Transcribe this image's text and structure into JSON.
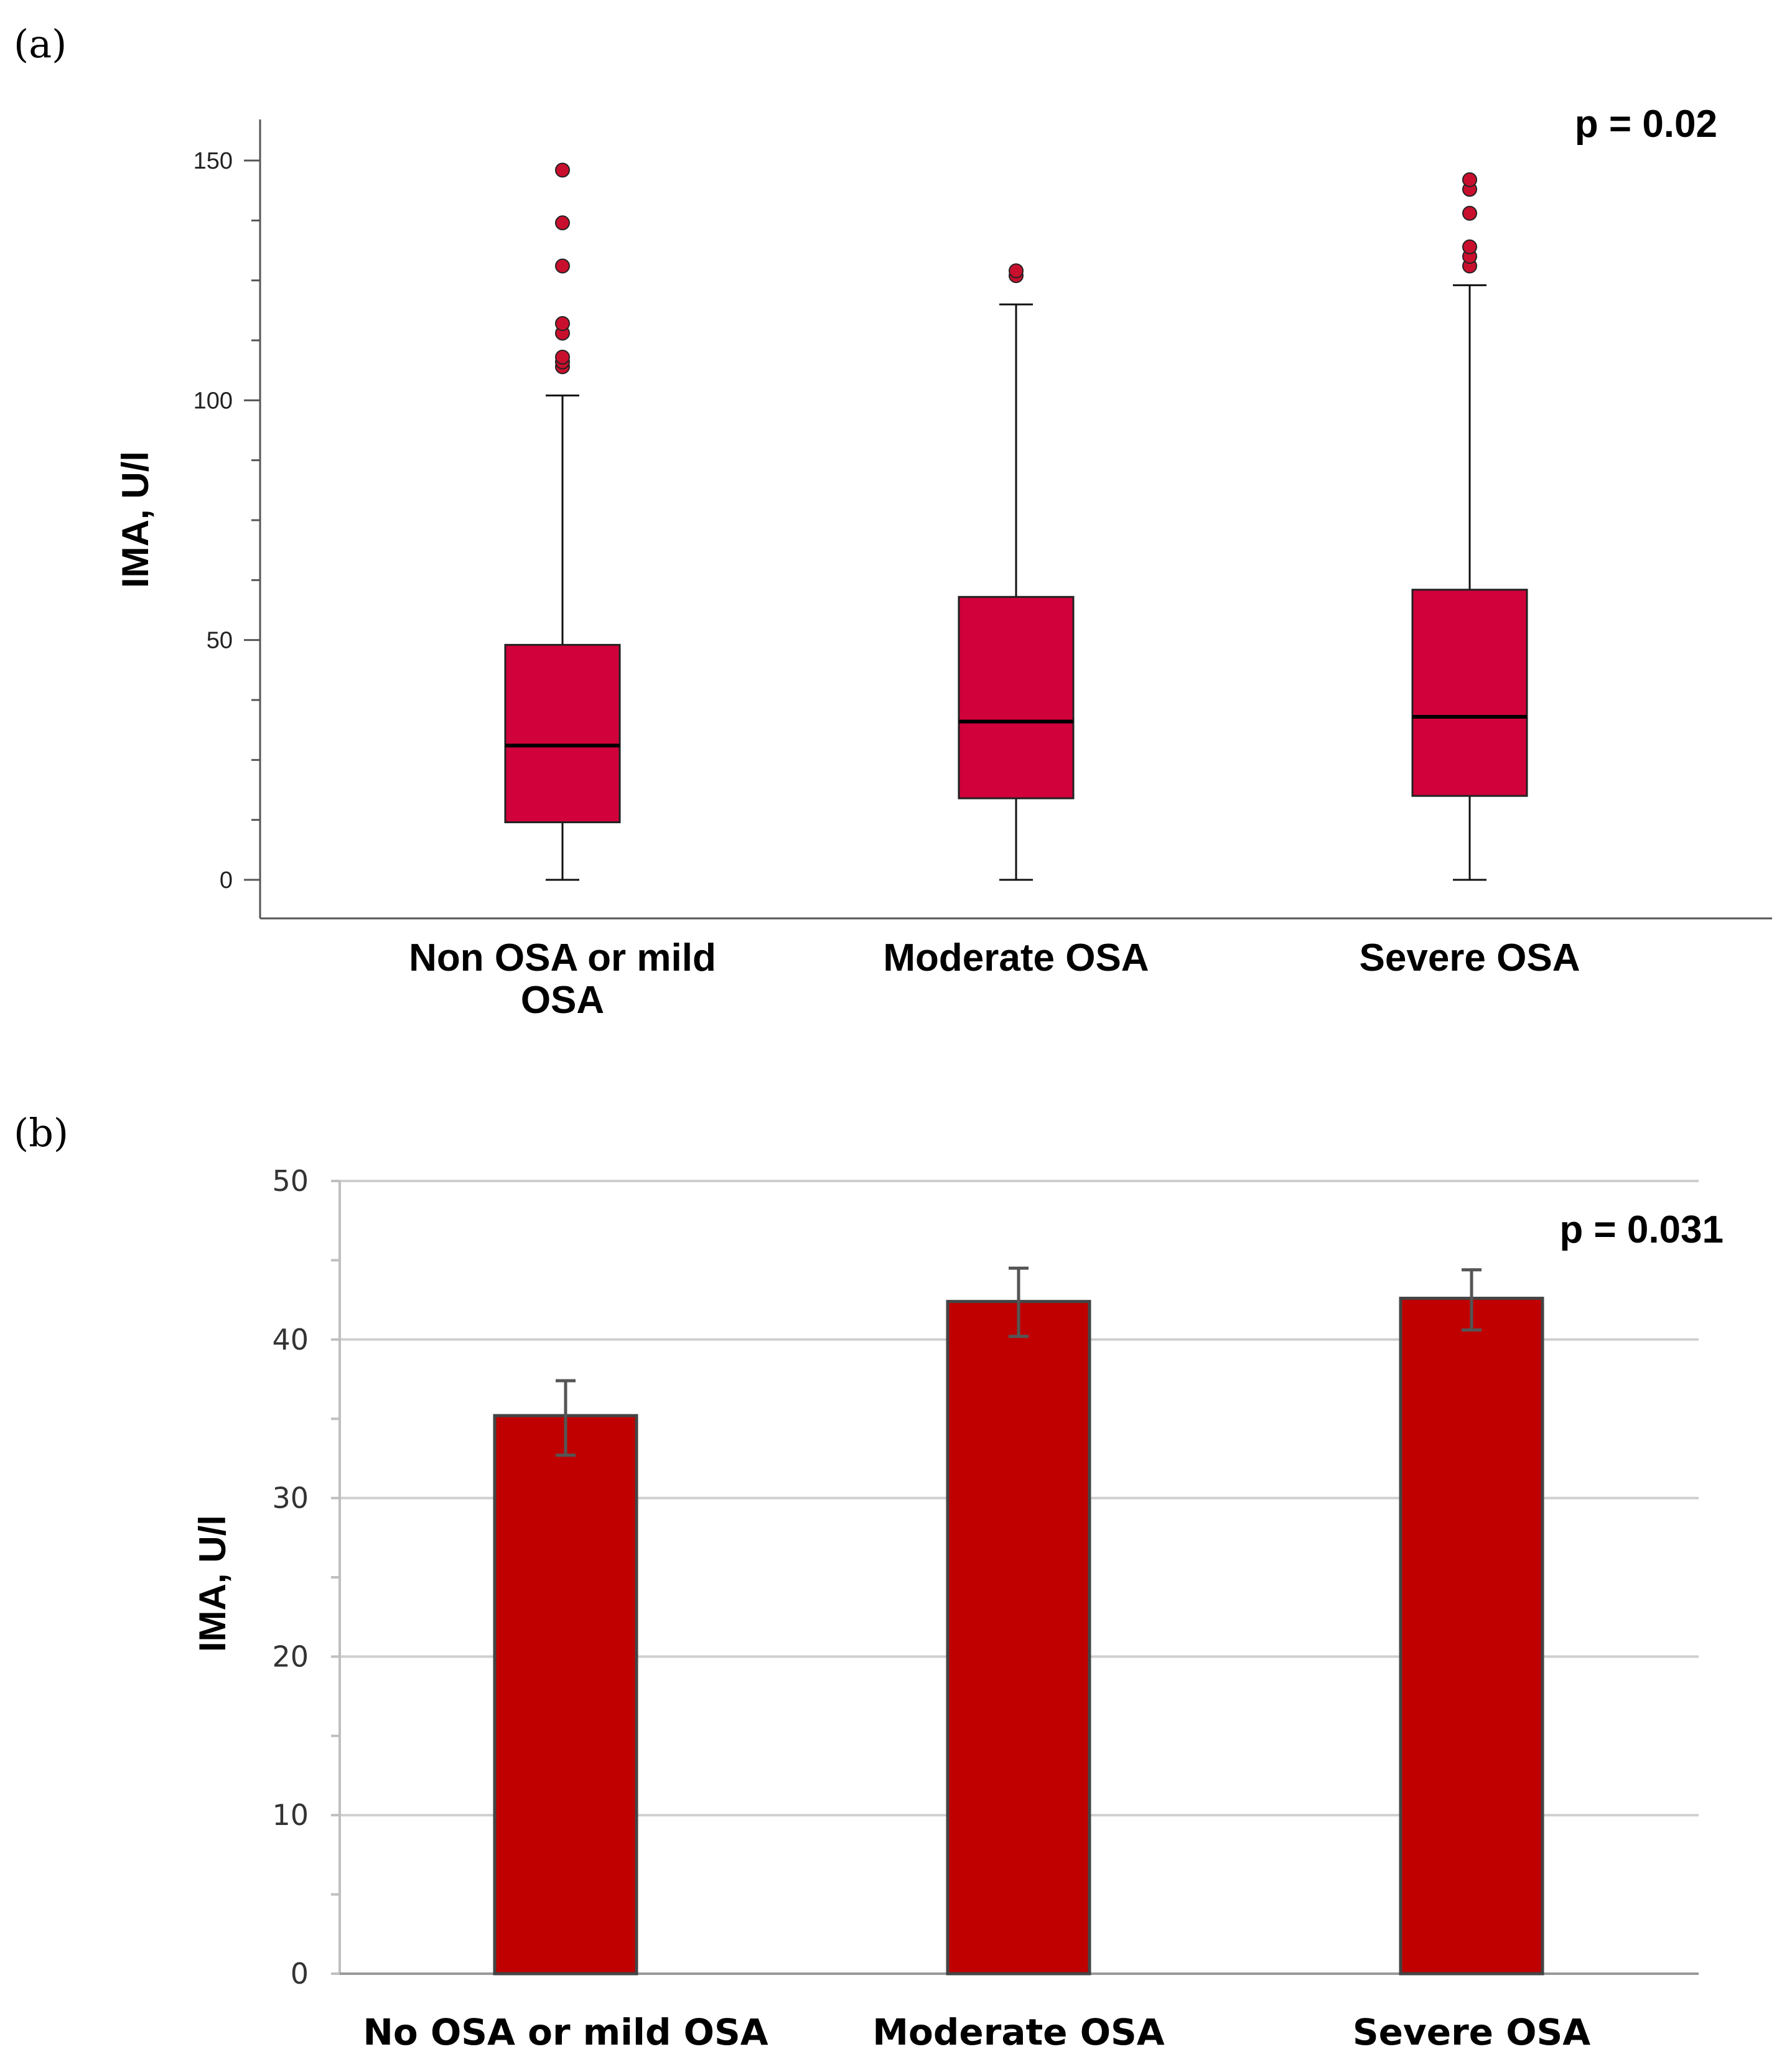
{
  "chart_data": [
    {
      "type": "box",
      "panel_label": "(a)",
      "ylabel": "IMA, U/l",
      "annotation": "p = 0.02",
      "ylim": [
        -8,
        158
      ],
      "yticks": [
        0,
        50,
        100,
        150
      ],
      "colors": {
        "box": "#d0013b",
        "outlier": "#c8102e"
      },
      "categories": [
        {
          "label_lines": [
            "Non OSA or mild",
            "OSA"
          ],
          "whisker_low": 0,
          "q1": 12,
          "median": 28,
          "q3": 49,
          "whisker_high": 101,
          "outliers": [
            107,
            108,
            109,
            114,
            116,
            128,
            137,
            148
          ]
        },
        {
          "label_lines": [
            "Moderate OSA"
          ],
          "whisker_low": 0,
          "q1": 17,
          "median": 33,
          "q3": 59,
          "whisker_high": 120,
          "outliers": [
            126,
            127
          ]
        },
        {
          "label_lines": [
            "Severe OSA"
          ],
          "whisker_low": 0,
          "q1": 17.5,
          "median": 34,
          "q3": 60.5,
          "whisker_high": 124,
          "outliers": [
            128,
            130,
            132,
            139,
            144,
            146
          ]
        }
      ]
    },
    {
      "type": "bar",
      "panel_label": "(b)",
      "ylabel": "IMA, U/l",
      "annotation": "p = 0.031",
      "ylim": [
        0,
        50
      ],
      "yticks": [
        0,
        10,
        20,
        30,
        40,
        50
      ],
      "grid": true,
      "colors": {
        "bar": "#c00000",
        "error": "#555555"
      },
      "categories": [
        "No OSA or mild OSA",
        "Moderate OSA",
        "Severe OSA"
      ],
      "values": [
        35.2,
        42.4,
        42.6
      ],
      "error_low": [
        32.7,
        40.2,
        40.6
      ],
      "error_high": [
        37.4,
        44.5,
        44.4
      ]
    }
  ]
}
